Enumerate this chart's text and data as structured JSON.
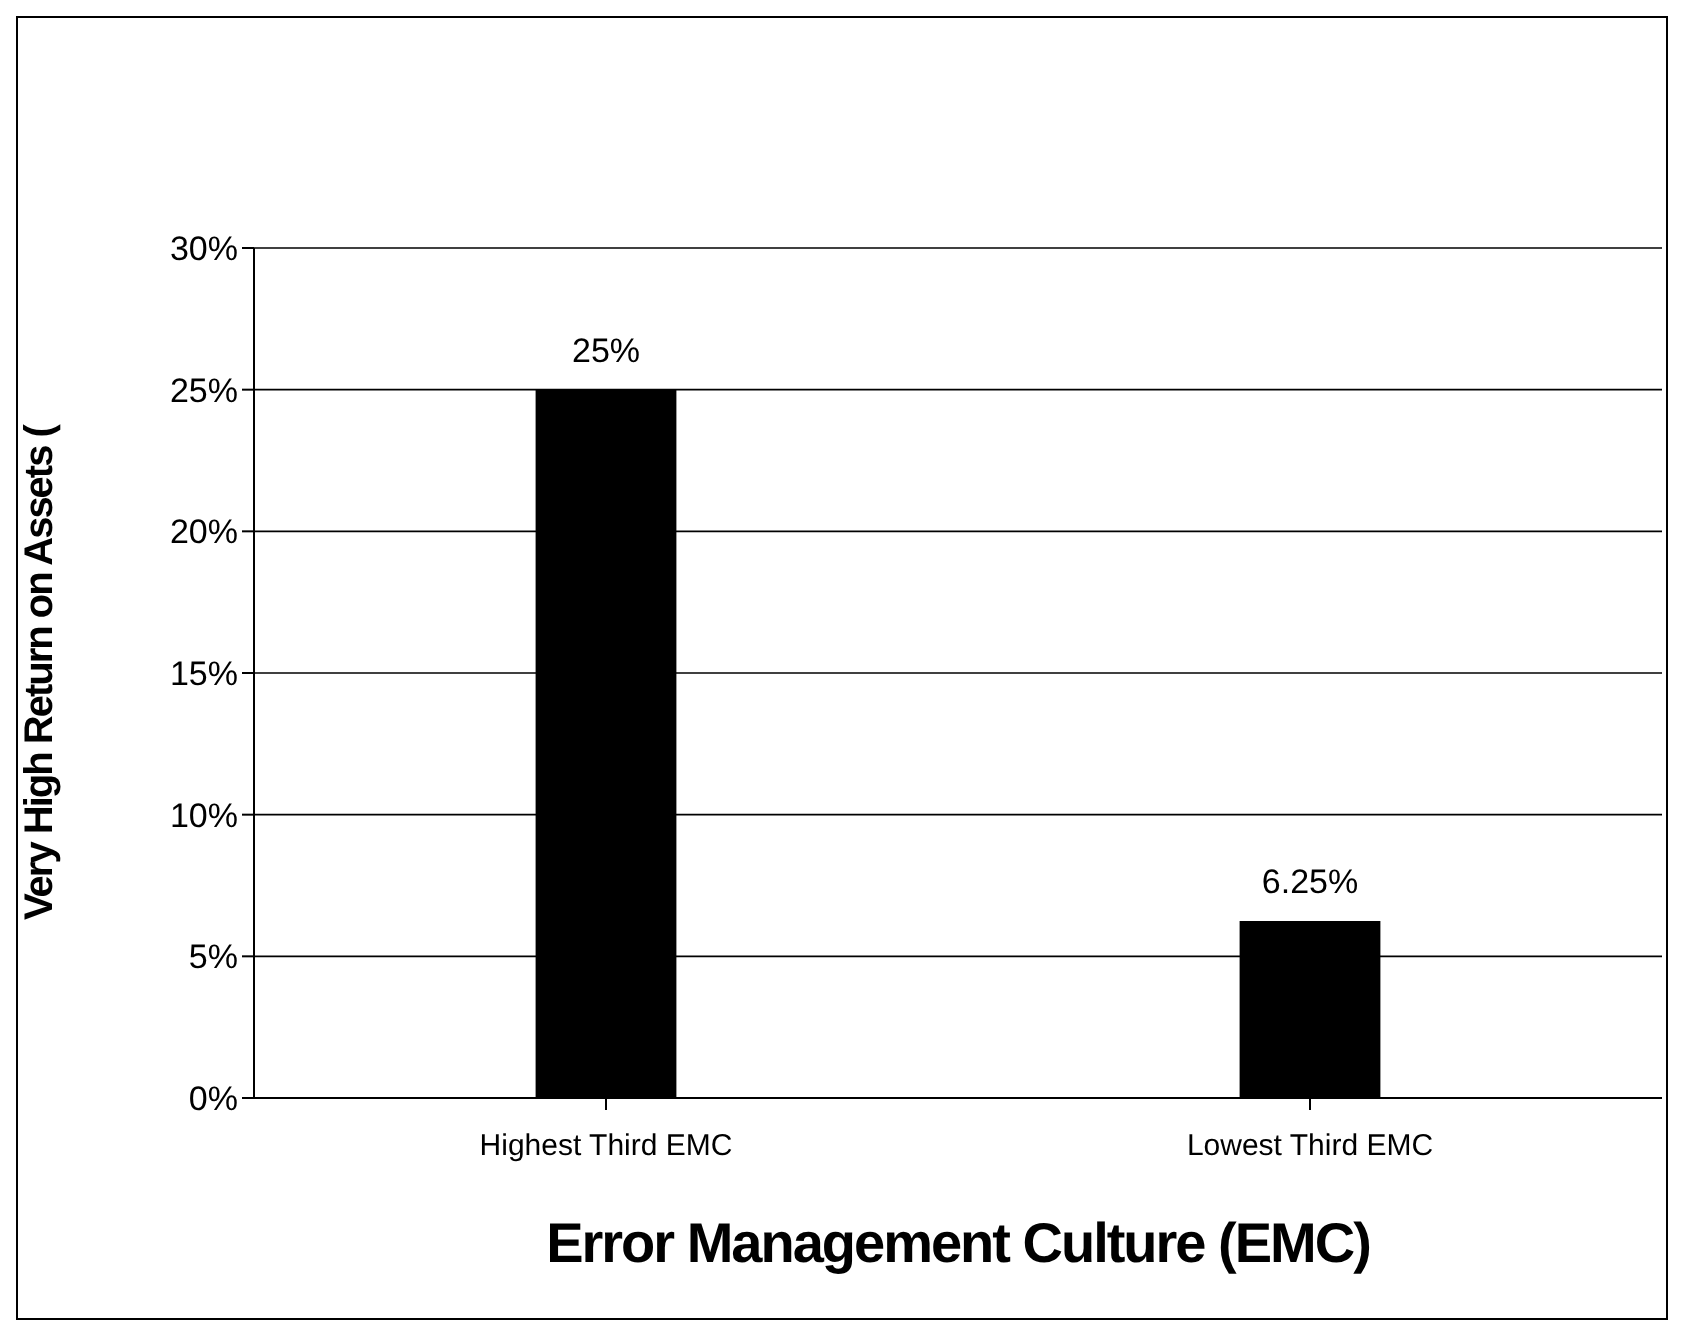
{
  "chart_data": {
    "type": "bar",
    "xlabel": "Error Management Culture (EMC)",
    "ylabel": "Very High Return on Assets (",
    "categories": [
      "Highest Third EMC",
      "Lowest Third EMC"
    ],
    "values": [
      25,
      6.25
    ],
    "value_labels": [
      "25%",
      "6.25%"
    ],
    "color": "#000000",
    "ylim": [
      0,
      30
    ],
    "yticks": [
      {
        "value": 0,
        "label": "0%"
      },
      {
        "value": 5,
        "label": "5%"
      },
      {
        "value": 10,
        "label": "10%"
      },
      {
        "value": 15,
        "label": "15%"
      },
      {
        "value": 20,
        "label": "20%"
      },
      {
        "value": 25,
        "label": "25%"
      },
      {
        "value": 30,
        "label": "30%"
      }
    ],
    "grid": "y"
  }
}
